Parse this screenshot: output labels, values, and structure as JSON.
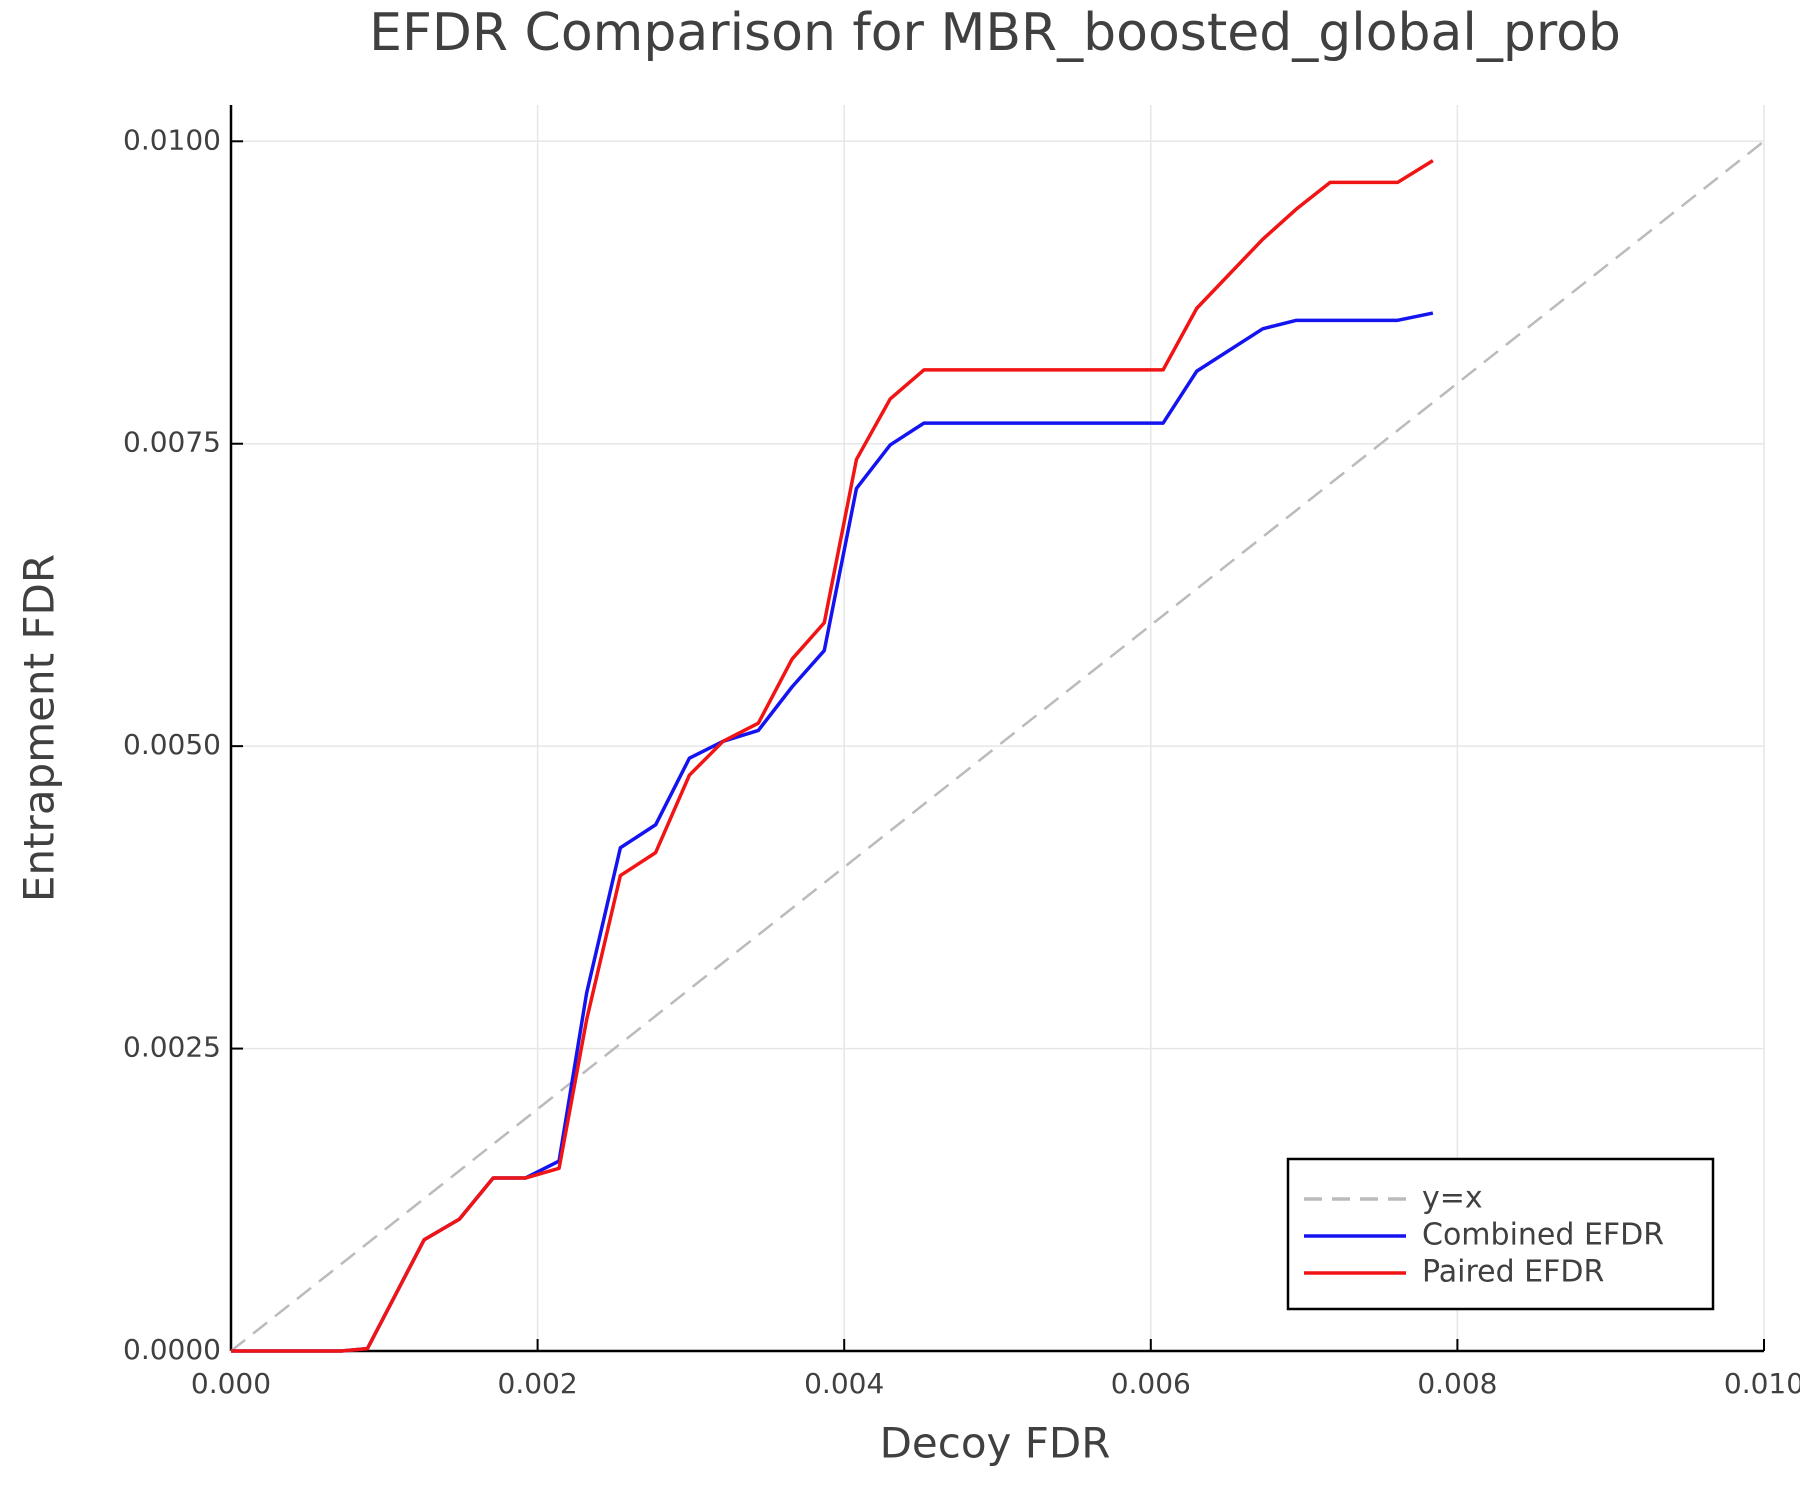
{
  "chart_data": {
    "type": "line",
    "title": "EFDR Comparison for MBR_boosted_global_prob",
    "xlabel": "Decoy FDR",
    "ylabel": "Entrapment FDR",
    "xlim": [
      0,
      0.01
    ],
    "ylim": [
      0,
      0.0103
    ],
    "xticks": [
      {
        "value": 0,
        "label": "0.000"
      },
      {
        "value": 0.002,
        "label": "0.002"
      },
      {
        "value": 0.004,
        "label": "0.004"
      },
      {
        "value": 0.006,
        "label": "0.006"
      },
      {
        "value": 0.008,
        "label": "0.008"
      },
      {
        "value": 0.01,
        "label": "0.010"
      }
    ],
    "yticks": [
      {
        "value": 0,
        "label": "0.0000"
      },
      {
        "value": 0.0025,
        "label": "0.0025"
      },
      {
        "value": 0.005,
        "label": "0.0050"
      },
      {
        "value": 0.0075,
        "label": "0.0075"
      },
      {
        "value": 0.01,
        "label": "0.0100"
      }
    ],
    "grid": true,
    "legend": "bottom-right",
    "series": [
      {
        "name": "y=x",
        "color": "#bbbbbb",
        "dashed": true,
        "x": [
          0,
          0.01
        ],
        "values": [
          0,
          0.01
        ]
      },
      {
        "name": "Combined EFDR",
        "color": "#1414f0",
        "dashed": false,
        "x": [
          0,
          0.00072,
          0.00089,
          0.00126,
          0.00149,
          0.00171,
          0.00192,
          0.00214,
          0.00232,
          0.00254,
          0.00277,
          0.00299,
          0.00321,
          0.00344,
          0.00366,
          0.00387,
          0.00408,
          0.0043,
          0.00452,
          0.00608,
          0.0063,
          0.00673,
          0.00695,
          0.00717,
          0.00761,
          0.00784
        ],
        "values": [
          0,
          0,
          2e-05,
          0.00092,
          0.00109,
          0.00143,
          0.00143,
          0.00157,
          0.00296,
          0.00416,
          0.00435,
          0.0049,
          0.00504,
          0.00513,
          0.00549,
          0.00579,
          0.00713,
          0.00749,
          0.00767,
          0.00767,
          0.0081,
          0.00845,
          0.00852,
          0.00852,
          0.00852,
          0.00858
        ]
      },
      {
        "name": "Paired EFDR",
        "color": "#f01414",
        "dashed": false,
        "x": [
          0,
          0.00072,
          0.00089,
          0.00126,
          0.00149,
          0.00171,
          0.00192,
          0.00214,
          0.00232,
          0.00254,
          0.00277,
          0.00299,
          0.00321,
          0.00344,
          0.00366,
          0.00387,
          0.00408,
          0.0043,
          0.00452,
          0.00608,
          0.0063,
          0.00673,
          0.00695,
          0.00717,
          0.00761,
          0.00784
        ],
        "values": [
          0,
          0,
          2e-05,
          0.00092,
          0.00109,
          0.00143,
          0.00143,
          0.00151,
          0.00274,
          0.00393,
          0.00412,
          0.00476,
          0.00504,
          0.00519,
          0.00572,
          0.00602,
          0.00737,
          0.00787,
          0.00811,
          0.00811,
          0.00862,
          0.00919,
          0.00944,
          0.00966,
          0.00966,
          0.00984
        ]
      }
    ]
  }
}
